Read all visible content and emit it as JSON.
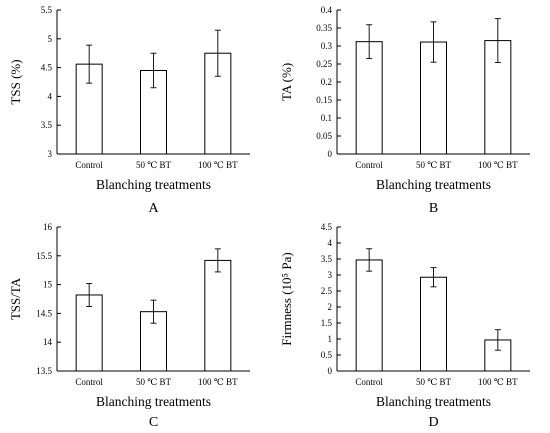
{
  "chart_data": [
    {
      "type": "bar",
      "panel_label": "A",
      "categories": [
        "Control",
        "50 ℃ BT",
        "100 ℃ BT"
      ],
      "values": [
        4.56,
        4.45,
        4.75
      ],
      "errors": [
        0.33,
        0.3,
        0.4
      ],
      "xlabel": "Blanching treatments",
      "ylabel": "TSS (%)",
      "ylim": [
        3,
        5.5
      ],
      "yticks": [
        "3",
        "3.5",
        "4",
        "4.5",
        "5",
        "5.5"
      ],
      "grid": false
    },
    {
      "type": "bar",
      "panel_label": "B",
      "categories": [
        "Control",
        "50 ℃ BT",
        "100 ℃ BT"
      ],
      "values": [
        0.312,
        0.311,
        0.315
      ],
      "errors": [
        0.047,
        0.056,
        0.061
      ],
      "xlabel": "Blanching treatments",
      "ylabel": "TA (%)",
      "ylim": [
        0,
        0.4
      ],
      "yticks": [
        "0",
        "0.05",
        "0.1",
        "0.15",
        "0.2",
        "0.25",
        "0.3",
        "0.35",
        "0.4"
      ],
      "grid": false
    },
    {
      "type": "bar",
      "panel_label": "C",
      "categories": [
        "Control",
        "50 ℃ BT",
        "100 ℃ BT"
      ],
      "values": [
        14.82,
        14.53,
        15.42
      ],
      "errors": [
        0.2,
        0.2,
        0.2
      ],
      "xlabel": "Blanching treatments",
      "ylabel": "TSS/TA",
      "ylim": [
        13.5,
        16
      ],
      "yticks": [
        "13.5",
        "14",
        "14.5",
        "15",
        "15.5",
        "16"
      ],
      "grid": false
    },
    {
      "type": "bar",
      "panel_label": "D",
      "categories": [
        "Control",
        "50 ℃ BT",
        "100 ℃ BT"
      ],
      "values": [
        3.47,
        2.93,
        0.97
      ],
      "errors": [
        0.35,
        0.3,
        0.32
      ],
      "xlabel": "Blanching treatments",
      "ylabel": "Firmness (10⁵ Pa)",
      "ylim": [
        0,
        4.5
      ],
      "yticks": [
        "0",
        "0.5",
        "1",
        "1.5",
        "2",
        "2.5",
        "3",
        "3.5",
        "4",
        "4.5"
      ],
      "grid": false
    }
  ]
}
